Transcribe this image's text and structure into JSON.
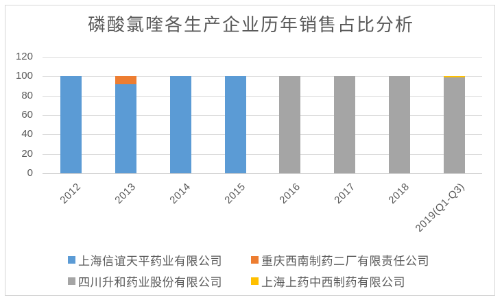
{
  "title": "磷酸氯喹各生产企业历年销售占比分析",
  "colors": {
    "series_blue": "#5B9BD5",
    "series_orange": "#ED7D31",
    "series_gray": "#A5A5A5",
    "series_yellow": "#FFC000",
    "gridline": "#D9D9D9",
    "text": "#595959",
    "border": "#D6D6D6"
  },
  "chart_data": {
    "type": "bar",
    "stacked": true,
    "title": "磷酸氯喹各生产企业历年销售占比分析",
    "categories": [
      "2012",
      "2013",
      "2014",
      "2015",
      "2016",
      "2017",
      "2018",
      "2019(Q1-Q3)"
    ],
    "series": [
      {
        "name": "上海信谊天平药业有限公司",
        "color": "#5B9BD5",
        "values": [
          100,
          92,
          100,
          100,
          0,
          0,
          0,
          0
        ]
      },
      {
        "name": "重庆西南制药二厂有限责任公司",
        "color": "#ED7D31",
        "values": [
          0,
          8,
          0,
          0,
          0,
          0,
          0,
          0
        ]
      },
      {
        "name": "四川升和药业股份有限公司",
        "color": "#A5A5A5",
        "values": [
          0,
          0,
          0,
          0,
          100,
          100,
          100,
          99
        ]
      },
      {
        "name": "上海上药中西制药有限公司",
        "color": "#FFC000",
        "values": [
          0,
          0,
          0,
          0,
          0,
          0,
          0,
          1
        ]
      }
    ],
    "xlabel": "",
    "ylabel": "",
    "y_ticks": [
      0,
      20,
      40,
      60,
      80,
      100,
      120
    ],
    "ylim": [
      0,
      120
    ],
    "grid": true,
    "legend_position": "bottom"
  }
}
